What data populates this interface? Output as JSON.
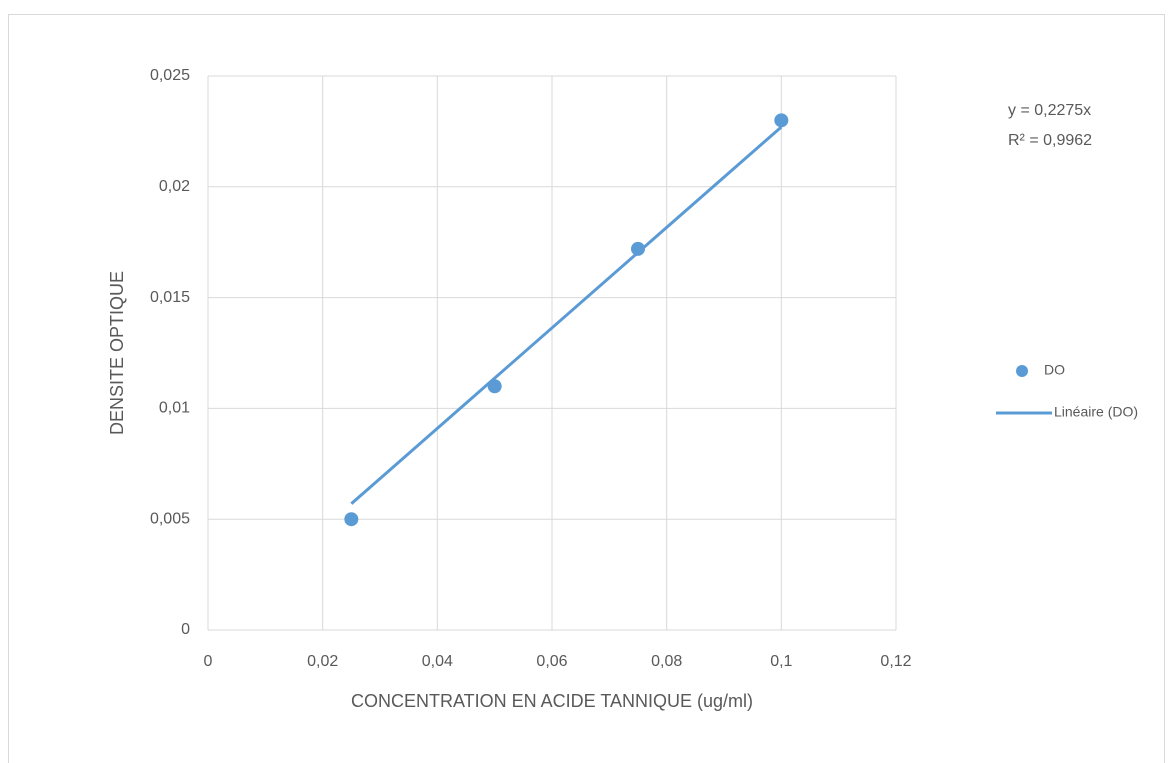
{
  "chart_data": {
    "type": "scatter",
    "x_label": "CONCENTRATION EN ACIDE TANNIQUE (ug/ml)",
    "y_label": "DENSITE OPTIQUE",
    "annotations": [
      "y = 0,2275x",
      "R² = 0,9962"
    ],
    "series": [
      {
        "name": "DO",
        "color": "#5b9bd5",
        "mode": "markers",
        "x": [
          0.025,
          0.05,
          0.075,
          0.1
        ],
        "values": [
          0.005,
          0.011,
          0.0172,
          0.023
        ]
      },
      {
        "name": "Linéaire (DO)",
        "color": "#5b9bd5",
        "mode": "line",
        "x": [
          0.025,
          0.1
        ],
        "values": [
          0.0057,
          0.0227
        ]
      }
    ],
    "xlim": [
      0,
      0.12
    ],
    "xticks": [
      0,
      {
        "value": 0.02,
        "label": "0,02"
      },
      {
        "value": 0.04,
        "label": "0,04"
      },
      {
        "value": 0.06,
        "label": "0,06"
      },
      {
        "value": 0.08,
        "label": "0,08"
      },
      {
        "value": 0.1,
        "label": "0,1"
      },
      {
        "value": 0.12,
        "label": "0,12"
      }
    ],
    "ylim": [
      0,
      0.025
    ],
    "yticks": [
      0,
      {
        "value": 0.005,
        "label": "0,005"
      },
      {
        "value": 0.01,
        "label": "0,01"
      },
      {
        "value": 0.015,
        "label": "0,015"
      },
      {
        "value": 0.02,
        "label": "0,02"
      },
      {
        "value": 0.025,
        "label": "0,025"
      }
    ],
    "grid": true,
    "legend": "right"
  }
}
